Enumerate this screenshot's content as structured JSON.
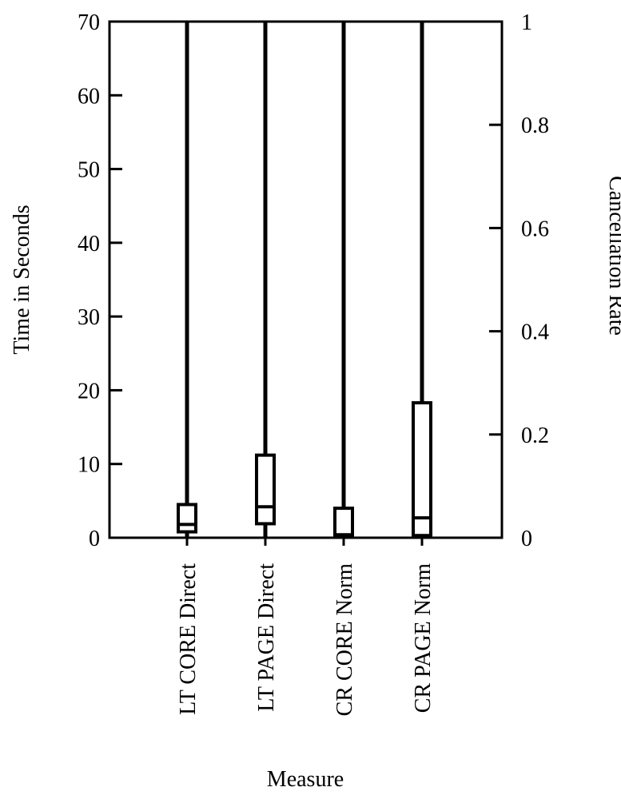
{
  "chart_data": {
    "type": "box",
    "title": "",
    "xlabel": "Measure",
    "ylabel_left": "Time in Seconds",
    "ylabel_right": "Cancellation Rate",
    "ylim_left": [
      0,
      70
    ],
    "ylim_right": [
      0,
      1
    ],
    "left_ticks": [
      0,
      10,
      20,
      30,
      40,
      50,
      60,
      70
    ],
    "right_ticks": [
      "0",
      "0.2",
      "0.4",
      "0.6",
      "0.8",
      "1"
    ],
    "categories": [
      "LT CORE Direct",
      "LT PAGE Direct",
      "CR CORE Norm",
      "CR PAGE Norm"
    ],
    "boxes": [
      {
        "category": "LT CORE Direct",
        "axis": "left",
        "min": 0,
        "q1": 0.8,
        "median": 1.8,
        "q3": 4.5,
        "max": 70
      },
      {
        "category": "LT PAGE Direct",
        "axis": "left",
        "min": 0,
        "q1": 1.9,
        "median": 4.2,
        "q3": 11.2,
        "max": 70
      },
      {
        "category": "CR CORE Norm",
        "axis": "left",
        "min": 0,
        "q1": 0.3,
        "median": 0.4,
        "q3": 4.0,
        "max": 70
      },
      {
        "category": "CR PAGE Norm",
        "axis": "left",
        "min": 0,
        "q1": 0.3,
        "median": 2.7,
        "q3": 18.3,
        "max": 70
      }
    ],
    "grid": false
  }
}
